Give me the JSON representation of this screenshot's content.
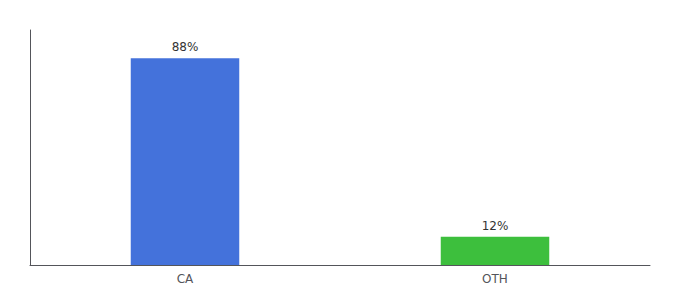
{
  "chart_data": {
    "type": "bar",
    "categories": [
      "CA",
      "OTH"
    ],
    "values": [
      88,
      12
    ],
    "colors": [
      "#4472db",
      "#3dbf3d"
    ],
    "ylim": [
      0,
      100
    ],
    "data_labels": true,
    "value_labels": [
      "88%",
      "12%"
    ],
    "tick_labels": "x",
    "grid": false
  }
}
